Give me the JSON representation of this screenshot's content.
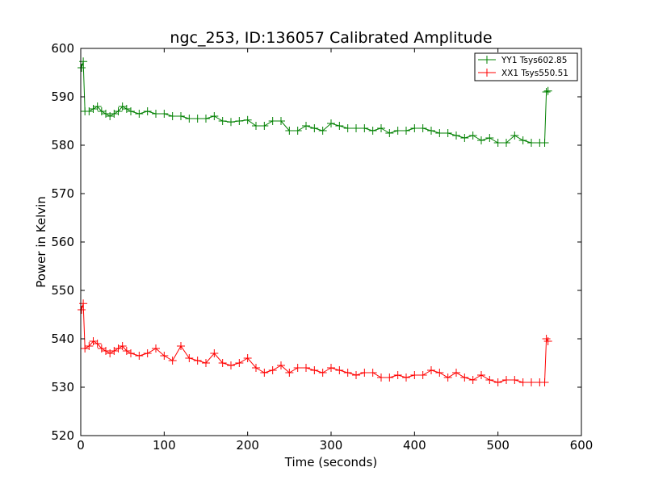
{
  "chart_data": {
    "type": "line",
    "title": "ngc_253, ID:136057 Calibrated Amplitude",
    "xlabel": "Time (seconds)",
    "ylabel": "Power in Kelvin",
    "xlim": [
      0,
      600
    ],
    "ylim": [
      520,
      600
    ],
    "xticks": [
      0,
      100,
      200,
      300,
      400,
      500,
      600
    ],
    "yticks": [
      520,
      530,
      540,
      550,
      560,
      570,
      580,
      590,
      600
    ],
    "grid": false,
    "legend_position": "top-right",
    "marker": "+",
    "series": [
      {
        "name": "YY1 Tsys602.85",
        "color": "#008000",
        "x": [
          1,
          3,
          5,
          10,
          15,
          20,
          25,
          30,
          35,
          40,
          45,
          50,
          55,
          60,
          70,
          80,
          90,
          100,
          110,
          120,
          130,
          140,
          150,
          160,
          170,
          180,
          190,
          200,
          210,
          220,
          230,
          240,
          250,
          260,
          270,
          280,
          290,
          300,
          310,
          320,
          330,
          340,
          350,
          360,
          370,
          380,
          390,
          400,
          410,
          420,
          430,
          440,
          450,
          460,
          470,
          480,
          490,
          500,
          510,
          520,
          530,
          540,
          550,
          556,
          558,
          560
        ],
        "y": [
          596,
          597.3,
          587,
          587,
          587.5,
          588,
          587,
          586.5,
          586,
          586.5,
          587,
          588,
          587.5,
          587,
          586.5,
          587,
          586.5,
          586.5,
          586,
          586,
          585.5,
          585.5,
          585.5,
          586,
          585,
          584.8,
          585,
          585.2,
          584,
          584,
          585,
          585,
          583,
          583,
          584,
          583.5,
          583,
          584.5,
          584,
          583.5,
          583.5,
          583.5,
          583,
          583.5,
          582.5,
          583,
          583,
          583.5,
          583.5,
          583,
          582.5,
          582.5,
          582,
          581.5,
          582,
          581,
          581.5,
          580.5,
          580.5,
          582,
          581,
          580.5,
          580.5,
          580.5,
          591,
          591.2
        ]
      },
      {
        "name": "XX1 Tsys550.51",
        "color": "#ff0000",
        "x": [
          1,
          3,
          5,
          10,
          15,
          20,
          25,
          30,
          35,
          40,
          45,
          50,
          55,
          60,
          70,
          80,
          90,
          100,
          110,
          120,
          130,
          140,
          150,
          160,
          170,
          180,
          190,
          200,
          210,
          220,
          230,
          240,
          250,
          260,
          270,
          280,
          290,
          300,
          310,
          320,
          330,
          340,
          350,
          360,
          370,
          380,
          390,
          400,
          410,
          420,
          430,
          440,
          450,
          460,
          470,
          480,
          490,
          500,
          510,
          520,
          530,
          540,
          550,
          556,
          558,
          560
        ],
        "y": [
          546,
          547.3,
          538,
          538.5,
          539.5,
          539,
          538,
          537.5,
          537,
          537.5,
          538,
          538.5,
          537.5,
          537,
          536.5,
          537,
          538,
          536.5,
          535.5,
          538.5,
          536,
          535.5,
          535,
          537,
          535,
          534.5,
          535,
          536,
          534,
          533,
          533.5,
          534.5,
          533,
          534,
          534,
          533.5,
          533,
          534,
          533.5,
          533,
          532.5,
          533,
          533,
          532,
          532,
          532.5,
          532,
          532.5,
          532.5,
          533.5,
          533,
          532,
          533,
          532,
          531.5,
          532.5,
          531.5,
          531,
          531.5,
          531.5,
          531,
          531,
          531,
          531,
          540,
          539.5
        ]
      }
    ]
  }
}
